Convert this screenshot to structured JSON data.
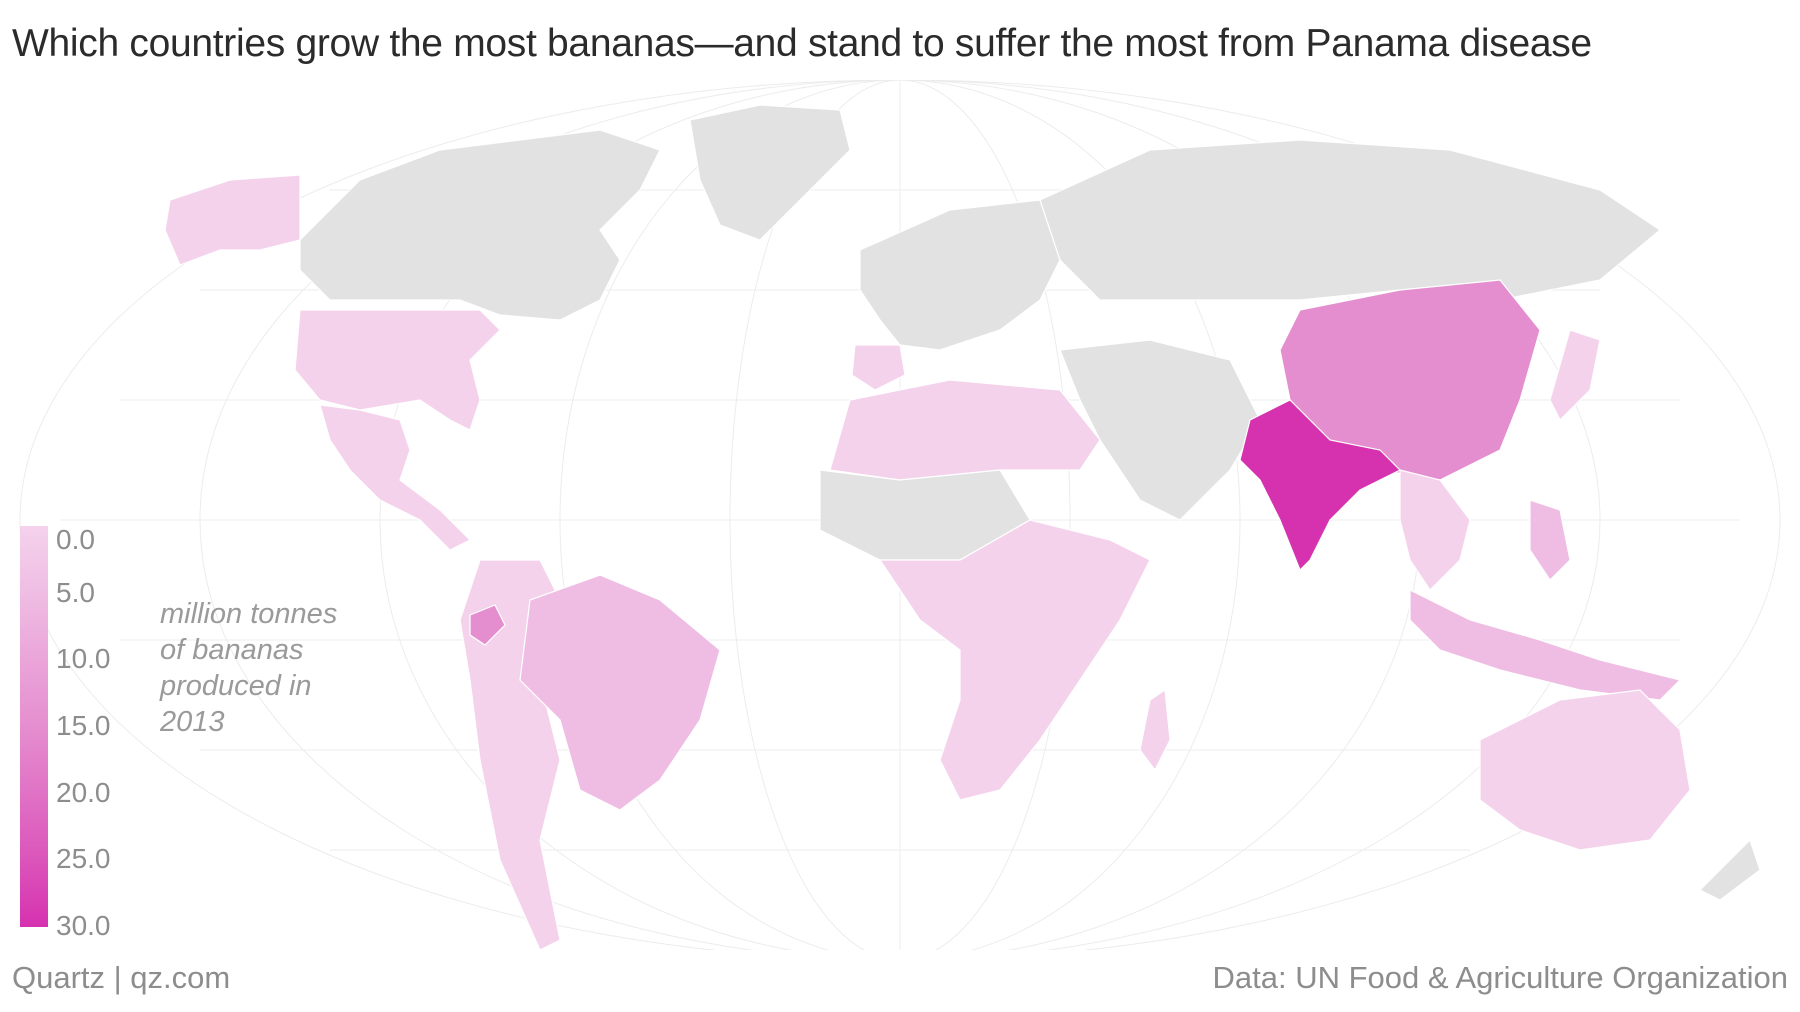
{
  "title": "Which countries grow the most bananas—and stand to suffer the most from Panama disease",
  "legend": {
    "unit_lines": [
      "million tonnes",
      "of bananas",
      "produced in",
      "2013"
    ],
    "ticks": [
      "0.0",
      "5.0",
      "10.0",
      "15.0",
      "20.0",
      "25.0",
      "30.0"
    ],
    "colors": [
      "#f4d2ec",
      "#efbde3",
      "#eaa5d9",
      "#e58ecf",
      "#e072c5",
      "#db55ba",
      "#d632b0"
    ]
  },
  "footer": {
    "credit": "Quartz | qz.com",
    "source": "Data: UN Food & Agriculture Organization"
  },
  "colors": {
    "no_data": "#e2e2e2",
    "highlight_india": "#d632b0",
    "china": "#e58ecf",
    "mid": "#eaa5d9",
    "low": "#f4d2ec"
  }
}
